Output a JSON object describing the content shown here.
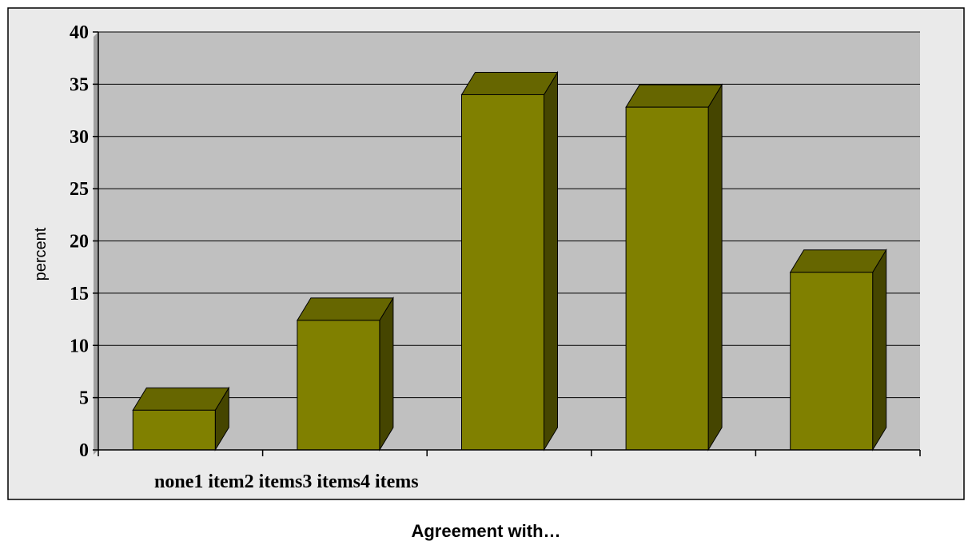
{
  "chart_data": {
    "type": "bar",
    "categories": [
      "none",
      "1 item",
      "2 items",
      "3 items",
      "4 items"
    ],
    "values": [
      3.8,
      12.4,
      34.0,
      32.8,
      17.0
    ],
    "xlabel": "Agreement with…",
    "ylabel": "percent",
    "ylim": [
      0,
      40
    ],
    "yticks": [
      0,
      5,
      10,
      15,
      20,
      25,
      30,
      35,
      40
    ],
    "grid": true,
    "style": "3d-column",
    "colors": {
      "bar_front": "#808000",
      "bar_top": "#666600",
      "bar_side": "#454500",
      "plot_background": "#c0c0c0",
      "outer_background": "#eaeaea",
      "wall_side": "#a0a0a0"
    }
  }
}
